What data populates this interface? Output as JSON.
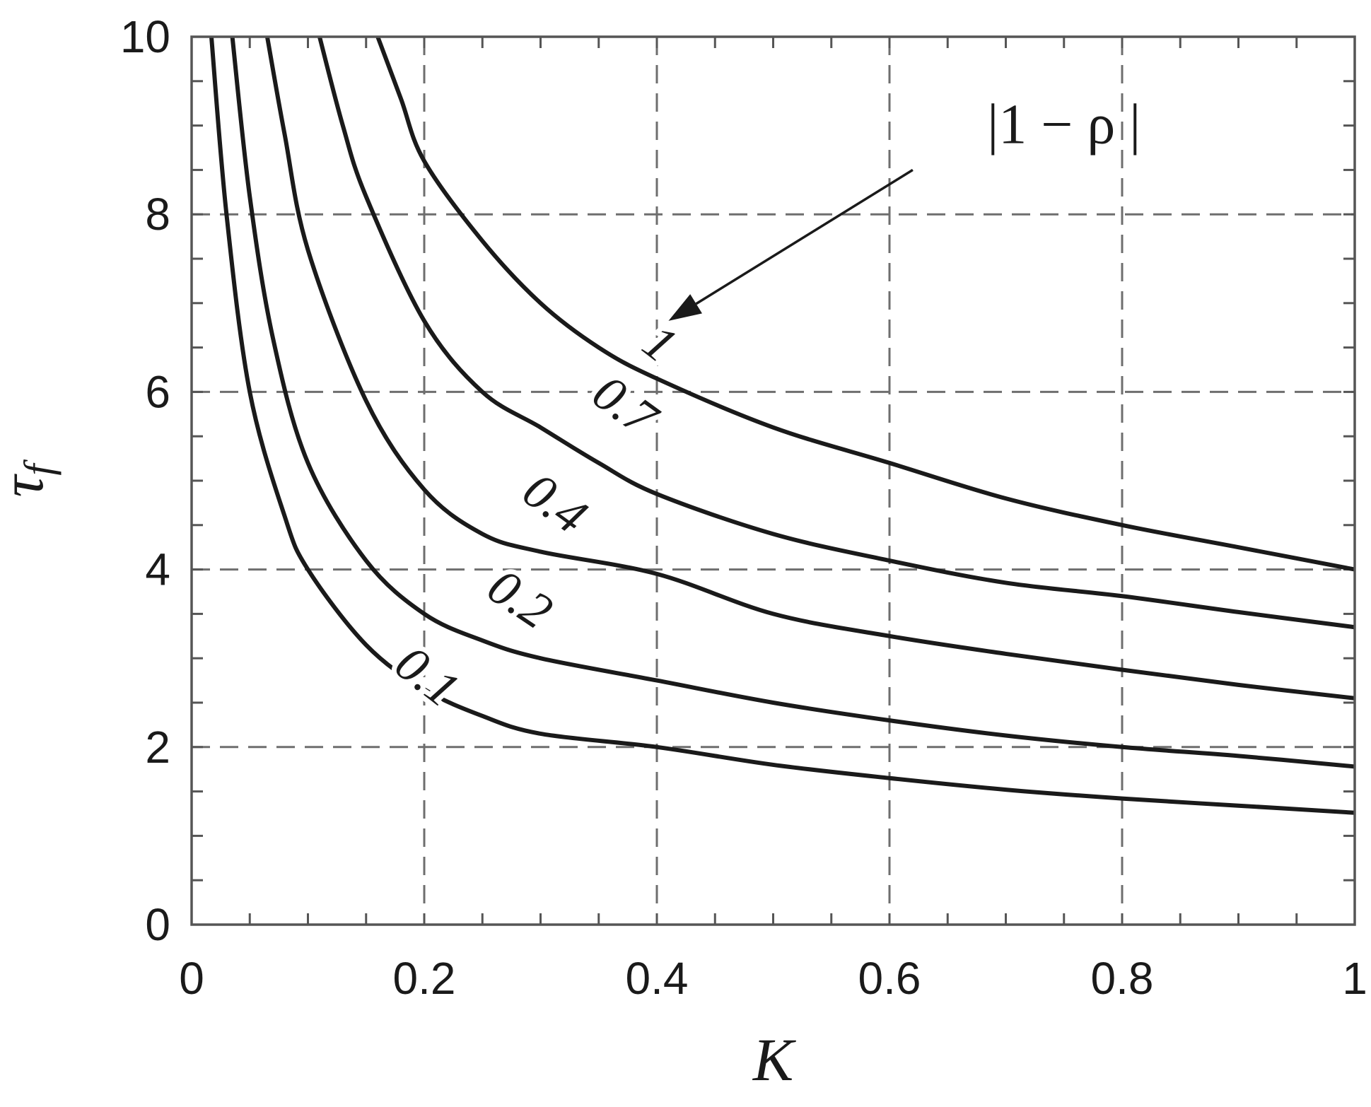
{
  "chart_data": {
    "type": "line",
    "xlabel": "K",
    "ylabel": "τ",
    "ylabel_sub": "f",
    "xlim": [
      0,
      1
    ],
    "ylim": [
      0,
      10
    ],
    "xticks": [
      0,
      0.2,
      0.4,
      0.6,
      0.8,
      1
    ],
    "xtick_labels": [
      "0",
      "0.2",
      "0.4",
      "0.6",
      "0.8",
      "1"
    ],
    "yticks": [
      0,
      2,
      4,
      6,
      8,
      10
    ],
    "ytick_labels": [
      "0",
      "2",
      "4",
      "6",
      "8",
      "10"
    ],
    "grid": true,
    "series": [
      {
        "name": "0.1",
        "x": [
          0.017,
          0.03,
          0.05,
          0.08,
          0.1,
          0.15,
          0.2,
          0.25,
          0.3,
          0.4,
          0.5,
          0.6,
          0.7,
          0.8,
          0.9,
          1.0
        ],
        "y": [
          10.0,
          8.0,
          6.0,
          4.6,
          4.0,
          3.15,
          2.65,
          2.35,
          2.15,
          2.0,
          1.8,
          1.65,
          1.52,
          1.42,
          1.34,
          1.26
        ]
      },
      {
        "name": "0.2",
        "x": [
          0.035,
          0.05,
          0.07,
          0.1,
          0.15,
          0.2,
          0.25,
          0.3,
          0.4,
          0.5,
          0.6,
          0.7,
          0.8,
          0.9,
          1.0
        ],
        "y": [
          10.0,
          8.2,
          6.6,
          5.2,
          4.1,
          3.5,
          3.2,
          3.0,
          2.75,
          2.5,
          2.3,
          2.13,
          2.0,
          1.9,
          1.78
        ]
      },
      {
        "name": "0.4",
        "x": [
          0.065,
          0.08,
          0.1,
          0.15,
          0.2,
          0.25,
          0.3,
          0.4,
          0.5,
          0.6,
          0.7,
          0.8,
          0.9,
          1.0
        ],
        "y": [
          10.0,
          8.9,
          7.6,
          5.9,
          4.9,
          4.4,
          4.2,
          3.95,
          3.5,
          3.25,
          3.05,
          2.87,
          2.7,
          2.55
        ]
      },
      {
        "name": "0.7",
        "x": [
          0.11,
          0.13,
          0.15,
          0.2,
          0.25,
          0.3,
          0.35,
          0.4,
          0.5,
          0.6,
          0.7,
          0.8,
          0.9,
          1.0
        ],
        "y": [
          10.0,
          9.0,
          8.2,
          6.8,
          6.0,
          5.6,
          5.2,
          4.85,
          4.4,
          4.1,
          3.85,
          3.7,
          3.52,
          3.35
        ]
      },
      {
        "name": "1",
        "x": [
          0.16,
          0.18,
          0.2,
          0.25,
          0.3,
          0.35,
          0.4,
          0.5,
          0.6,
          0.7,
          0.8,
          0.9,
          1.0
        ],
        "y": [
          10.0,
          9.3,
          8.6,
          7.7,
          7.0,
          6.5,
          6.15,
          5.6,
          5.2,
          4.8,
          4.5,
          4.25,
          4.0
        ]
      }
    ],
    "curve_labels": [
      {
        "text": "0.1",
        "x": 0.2,
        "y": 2.75,
        "angle": 38
      },
      {
        "text": "0.2",
        "x": 0.28,
        "y": 3.62,
        "angle": 34
      },
      {
        "text": "0.4",
        "x": 0.31,
        "y": 4.7,
        "angle": 36
      },
      {
        "text": "0.7",
        "x": 0.37,
        "y": 5.8,
        "angle": 36
      },
      {
        "text": "1",
        "x": 0.4,
        "y": 6.5,
        "angle": 38
      }
    ],
    "annotation": {
      "text": "|1 − ρ |",
      "x": 0.75,
      "y": 8.8,
      "arrow_from": [
        0.62,
        8.5
      ],
      "arrow_to": [
        0.41,
        6.8
      ]
    }
  }
}
